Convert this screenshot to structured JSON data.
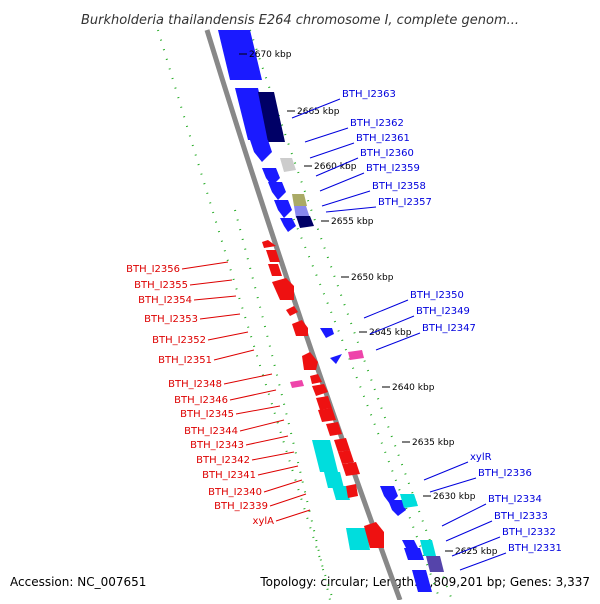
{
  "header": {
    "title": "Burkholderia thailandensis E264 chromosome I, complete genom..."
  },
  "footer": {
    "accession": "Accession: NC_007651",
    "topology": "Topology: circular; Length: 3,809,201 bp; Genes: 3,337"
  },
  "colors": {
    "forward": "#0000dd",
    "reverse": "#dd0000",
    "backbone": "#888888",
    "gc_skew_dots": "#22aa22",
    "forward_gene": "#1a1aff",
    "forward_gene_dark": "#000066",
    "reverse_gene": "#ee1111",
    "rna_cyan": "#00dddd",
    "misc_grey": "#cccccc",
    "misc_olive": "#aaaa66",
    "misc_lavender": "#8888ee",
    "misc_magenta": "#ee44aa",
    "misc_purple": "#5544aa"
  },
  "ticks": [
    "2670 kbp",
    "2665 kbp",
    "2660 kbp",
    "2655 kbp",
    "2650 kbp",
    "2645 kbp",
    "2640 kbp",
    "2635 kbp",
    "2630 kbp",
    "2625 kbp"
  ],
  "forward_labels": [
    "BTH_I2363",
    "BTH_I2362",
    "BTH_I2361",
    "BTH_I2360",
    "BTH_I2359",
    "BTH_I2358",
    "BTH_I2357",
    "BTH_I2350",
    "BTH_I2349",
    "BTH_I2347",
    "xylR",
    "BTH_I2336",
    "BTH_I2334",
    "BTH_I2333",
    "BTH_I2332",
    "BTH_I2331"
  ],
  "reverse_labels": [
    "BTH_I2356",
    "BTH_I2355",
    "BTH_I2354",
    "BTH_I2353",
    "BTH_I2352",
    "BTH_I2351",
    "BTH_I2348",
    "BTH_I2346",
    "BTH_I2345",
    "BTH_I2344",
    "BTH_I2343",
    "BTH_I2342",
    "BTH_I2341",
    "BTH_I2340",
    "BTH_I2339",
    "xylA"
  ]
}
